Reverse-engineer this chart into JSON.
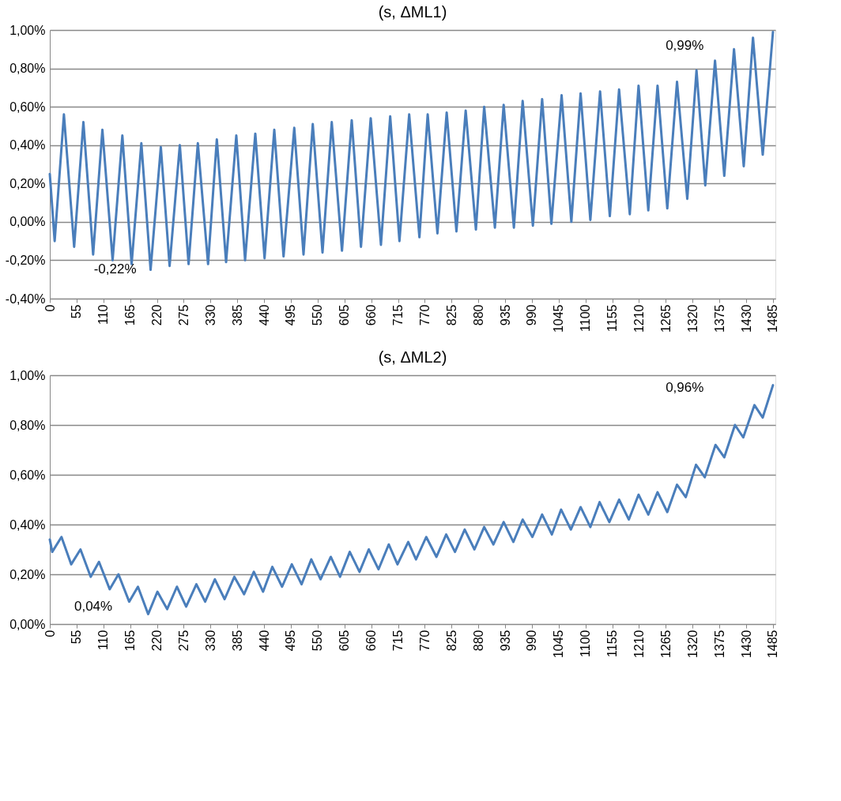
{
  "chart_data": [
    {
      "type": "line",
      "title": "(s, ΔML1)",
      "x": [
        0,
        10,
        29,
        50,
        69,
        89,
        108,
        129,
        149,
        168,
        188,
        207,
        228,
        246,
        267,
        285,
        304,
        325,
        343,
        362,
        383,
        401,
        422,
        441,
        461,
        480,
        502,
        521,
        540,
        560,
        579,
        600,
        620,
        639,
        659,
        680,
        699,
        718,
        738,
        759,
        776,
        796,
        815,
        835,
        854,
        875,
        892,
        914,
        932,
        953,
        971,
        992,
        1011,
        1030,
        1051,
        1071,
        1090,
        1110,
        1130,
        1150,
        1169,
        1191,
        1209,
        1229,
        1248,
        1268,
        1288,
        1309,
        1328,
        1346,
        1366,
        1385,
        1405,
        1425,
        1444,
        1464,
        1485
      ],
      "series": [
        {
          "color": "#4a7ebb",
          "values": [
            0.25,
            -0.1,
            0.56,
            -0.13,
            0.52,
            -0.17,
            0.48,
            -0.2,
            0.45,
            -0.22,
            0.41,
            -0.25,
            0.39,
            -0.23,
            0.4,
            -0.22,
            0.41,
            -0.22,
            0.43,
            -0.21,
            0.45,
            -0.2,
            0.46,
            -0.19,
            0.48,
            -0.18,
            0.49,
            -0.17,
            0.51,
            -0.16,
            0.52,
            -0.15,
            0.53,
            -0.13,
            0.54,
            -0.12,
            0.55,
            -0.1,
            0.56,
            -0.08,
            0.56,
            -0.06,
            0.57,
            -0.05,
            0.58,
            -0.04,
            0.6,
            -0.03,
            0.61,
            -0.03,
            0.63,
            -0.02,
            0.64,
            -0.01,
            0.66,
            0.0,
            0.67,
            0.01,
            0.68,
            0.03,
            0.69,
            0.04,
            0.71,
            0.06,
            0.71,
            0.07,
            0.73,
            0.12,
            0.79,
            0.19,
            0.84,
            0.24,
            0.9,
            0.29,
            0.96,
            0.35,
            0.99
          ]
        }
      ],
      "xlim": [
        0,
        1490
      ],
      "xticks": [
        0,
        55,
        110,
        165,
        220,
        275,
        330,
        385,
        440,
        495,
        550,
        605,
        660,
        715,
        770,
        825,
        880,
        935,
        990,
        1045,
        1100,
        1155,
        1210,
        1265,
        1320,
        1375,
        1430,
        1485
      ],
      "ylim": [
        -0.4,
        1.0
      ],
      "yticks": [
        {
          "value": -0.4,
          "label": "-0,40%"
        },
        {
          "value": -0.2,
          "label": "-0,20%"
        },
        {
          "value": 0,
          "label": "0,00%"
        },
        {
          "value": 0.2,
          "label": "0,20%"
        },
        {
          "value": 0.4,
          "label": "0,40%"
        },
        {
          "value": 0.6,
          "label": "0,60%"
        },
        {
          "value": 0.8,
          "label": "0,80%"
        },
        {
          "value": 1.0,
          "label": "1,00%"
        }
      ],
      "grid": "y",
      "annotations": [
        "-0,22%",
        "0,99%"
      ]
    },
    {
      "type": "line",
      "title": "(s, ΔML2)",
      "x": [
        0,
        5,
        24,
        44,
        63,
        84,
        101,
        123,
        141,
        163,
        181,
        202,
        221,
        241,
        261,
        280,
        301,
        319,
        339,
        359,
        379,
        399,
        419,
        438,
        457,
        477,
        497,
        517,
        537,
        556,
        577,
        596,
        616,
        636,
        655,
        675,
        696,
        714,
        736,
        752,
        773,
        794,
        814,
        832,
        852,
        872,
        892,
        911,
        932,
        952,
        971,
        991,
        1011,
        1031,
        1050,
        1070,
        1090,
        1110,
        1129,
        1149,
        1169,
        1189,
        1209,
        1229,
        1248,
        1268,
        1288,
        1306,
        1327,
        1345,
        1367,
        1385,
        1407,
        1424,
        1447,
        1464,
        1485
      ],
      "series": [
        {
          "color": "#4a7ebb",
          "values": [
            0.34,
            0.29,
            0.35,
            0.24,
            0.3,
            0.19,
            0.25,
            0.14,
            0.2,
            0.09,
            0.15,
            0.04,
            0.13,
            0.06,
            0.15,
            0.07,
            0.16,
            0.09,
            0.18,
            0.1,
            0.19,
            0.12,
            0.21,
            0.13,
            0.23,
            0.15,
            0.24,
            0.16,
            0.26,
            0.18,
            0.27,
            0.19,
            0.29,
            0.21,
            0.3,
            0.22,
            0.32,
            0.24,
            0.33,
            0.26,
            0.35,
            0.27,
            0.36,
            0.29,
            0.38,
            0.3,
            0.39,
            0.32,
            0.41,
            0.33,
            0.42,
            0.35,
            0.44,
            0.36,
            0.46,
            0.38,
            0.47,
            0.39,
            0.49,
            0.41,
            0.5,
            0.42,
            0.52,
            0.44,
            0.53,
            0.45,
            0.56,
            0.51,
            0.64,
            0.59,
            0.72,
            0.67,
            0.8,
            0.75,
            0.88,
            0.83,
            0.96
          ]
        }
      ],
      "xlim": [
        0,
        1490
      ],
      "xticks": [
        0,
        55,
        110,
        165,
        220,
        275,
        330,
        385,
        440,
        495,
        550,
        605,
        660,
        715,
        770,
        825,
        880,
        935,
        990,
        1045,
        1100,
        1155,
        1210,
        1265,
        1320,
        1375,
        1430,
        1485
      ],
      "ylim": [
        0,
        1.0
      ],
      "yticks": [
        {
          "value": 0,
          "label": "0,00%"
        },
        {
          "value": 0.2,
          "label": "0,20%"
        },
        {
          "value": 0.4,
          "label": "0,40%"
        },
        {
          "value": 0.6,
          "label": "0,60%"
        },
        {
          "value": 0.8,
          "label": "0,80%"
        },
        {
          "value": 1.0,
          "label": "1,00%"
        }
      ],
      "grid": "y",
      "annotations": [
        "0,04%",
        "0,96%"
      ]
    }
  ]
}
